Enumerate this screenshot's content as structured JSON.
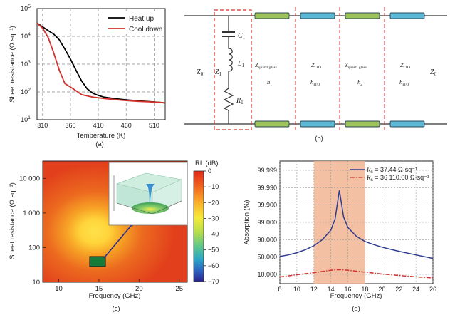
{
  "chart_data": [
    {
      "panel": "(a)",
      "type": "line",
      "xlabel": "Temperature (K)",
      "ylabel": "Sheet resistance (Ω sq⁻¹)",
      "xlim": [
        300,
        530
      ],
      "ylim_log10": [
        1,
        5
      ],
      "x_ticks": [
        "310",
        "360",
        "410",
        "460",
        "510"
      ],
      "y_ticks": [
        {
          "base": "10",
          "exp": "1"
        },
        {
          "base": "10",
          "exp": "2"
        },
        {
          "base": "10",
          "exp": "3"
        },
        {
          "base": "10",
          "exp": "4"
        },
        {
          "base": "10",
          "exp": "5"
        }
      ],
      "grid": "dashed",
      "legend": "top-right",
      "series": [
        {
          "name": "Heat up",
          "color": "#000000",
          "x": [
            300,
            310,
            320,
            330,
            340,
            350,
            360,
            370,
            380,
            390,
            400,
            410,
            420,
            440,
            460,
            480,
            500,
            520,
            530
          ],
          "y": [
            30000,
            22000,
            16000,
            12000,
            7500,
            3500,
            1500,
            600,
            250,
            130,
            90,
            75,
            65,
            57,
            52,
            48,
            45,
            42,
            40
          ]
        },
        {
          "name": "Cool down",
          "color": "#d0312d",
          "x": [
            300,
            310,
            320,
            330,
            340,
            345,
            350,
            360,
            370,
            380,
            400,
            420,
            440,
            460,
            480,
            500,
            520,
            530
          ],
          "y": [
            30000,
            20000,
            9000,
            2500,
            600,
            350,
            200,
            150,
            110,
            80,
            65,
            58,
            53,
            49,
            46,
            44,
            42,
            40
          ]
        }
      ]
    },
    {
      "panel": "(c)",
      "type": "heatmap",
      "xlabel": "Frequency (GHz)",
      "ylabel": "Sheet resistance (Ω sq⁻¹)",
      "xlim": [
        8,
        26
      ],
      "ylim_log10": [
        1,
        4.5
      ],
      "x_ticks": [
        "10",
        "15",
        "20",
        "25"
      ],
      "y_ticks": [
        "10",
        "100",
        "1 000",
        "10 000"
      ],
      "colorbar_label": "RL (dB)",
      "colorbar_ticks": [
        "0",
        "−10",
        "−20",
        "−30",
        "−40",
        "−50",
        "−60",
        "−70"
      ],
      "colorbar_range": [
        -70,
        0
      ],
      "minimum_point": {
        "frequency": 15,
        "resistance": 37.44,
        "rl": -70
      },
      "inset": "3D surface view of RL"
    },
    {
      "panel": "(d)",
      "type": "line",
      "xlabel": "Frequency (GHz)",
      "ylabel": "Absorption (%)",
      "xlim": [
        8,
        26
      ],
      "x_ticks": [
        "8",
        "10",
        "12",
        "14",
        "16",
        "18",
        "20",
        "22",
        "24",
        "26"
      ],
      "y_ticks": [
        "10.000",
        "50.000",
        "90.000",
        "99.000",
        "99.900",
        "99.990",
        "99.999"
      ],
      "highlight_band": [
        12,
        18
      ],
      "legend": "top-right",
      "series": [
        {
          "name": "Rs = 37.44 Ω·sq⁻¹",
          "label_italic": "R",
          "label_sub": "s",
          "label_rest": " = 37.44 Ω·sq⁻¹",
          "color": "#2f3c8f",
          "dash": "solid",
          "x": [
            8,
            9,
            10,
            11,
            12,
            13,
            14,
            14.5,
            15,
            15.5,
            16,
            17,
            18,
            19,
            20,
            22,
            24,
            26
          ],
          "y_level": [
            1.03,
            1.12,
            1.25,
            1.42,
            1.65,
            2.0,
            2.55,
            3.2,
            4.85,
            3.3,
            2.7,
            2.2,
            1.9,
            1.72,
            1.57,
            1.33,
            1.12,
            0.92
          ]
        },
        {
          "name": "Rs = 36 110.00 Ω·sq⁻¹",
          "label_italic": "R",
          "label_sub": "s",
          "label_rest": " = 36 110.00 Ω·sq⁻¹",
          "color": "#d0312d",
          "dash": "dashdot",
          "x": [
            8,
            10,
            12,
            14,
            15,
            16,
            18,
            20,
            22,
            24,
            26
          ],
          "y_level": [
            -0.15,
            -0.02,
            0.1,
            0.24,
            0.27,
            0.24,
            0.13,
            0.02,
            -0.06,
            -0.14,
            -0.2
          ]
        }
      ]
    }
  ],
  "panel_labels": {
    "a": "(a)",
    "b": "(b)",
    "c": "(c)",
    "d": "(d)"
  },
  "circuit": {
    "c1": "C",
    "c1_sub": "1",
    "l1": "L",
    "l1_sub": "1",
    "r1": "R",
    "r1_sub": "1",
    "z0_left": "Z",
    "z0_left_sub": "0",
    "z1": "Z",
    "z1_sub": "1",
    "z0_right": "Z",
    "z0_right_sub": "0",
    "layers": [
      {
        "z": "Z",
        "z_sub": "quartz glass",
        "h": "h",
        "h_sub": "1"
      },
      {
        "z": "Z",
        "z_sub": "ITO",
        "h": "h",
        "h_sub": "ITO"
      },
      {
        "z": "Z",
        "z_sub": "quartz glass",
        "h": "h",
        "h_sub": "2"
      },
      {
        "z": "Z",
        "z_sub": "ITO",
        "h": "h",
        "h_sub": "ITO"
      }
    ],
    "layer_colors": {
      "quartz": "#9dc35a",
      "ito": "#5bb8d6"
    }
  }
}
